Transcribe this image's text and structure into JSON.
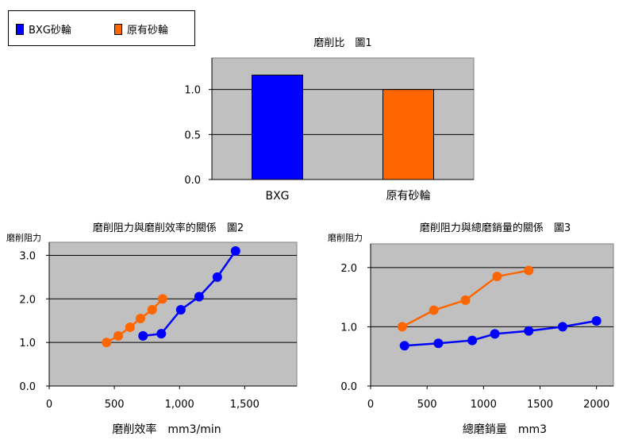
{
  "legend": {
    "items": [
      {
        "label": "BXG砂輪",
        "color": "#0000ff"
      },
      {
        "label": "原有砂輪",
        "color": "#ff6600"
      }
    ]
  },
  "chart_data": [
    {
      "type": "bar",
      "title": "磨削比　圖1",
      "categories": [
        "BXG",
        "原有砂輪"
      ],
      "values": [
        1.16,
        1.0
      ],
      "colors": [
        "#0000ff",
        "#ff6600"
      ],
      "ylim": [
        0,
        1.35
      ],
      "yticks": [
        "0.0",
        "0.5",
        "1.0"
      ],
      "ytick_values": [
        0,
        0.5,
        1.0
      ],
      "grid": true
    },
    {
      "type": "line",
      "title": "磨削阻力與磨削效率的關係　圖2",
      "ylabel": "磨削阻力",
      "xlabel": "磨削效率　mm3/min",
      "xlim": [
        0,
        1900
      ],
      "ylim": [
        0,
        3.3
      ],
      "xticks": [
        "0",
        "500",
        "1,000",
        "1,500"
      ],
      "xtick_values": [
        0,
        500,
        1000,
        1500
      ],
      "yticks": [
        "0.0",
        "1.0",
        "2.0",
        "3.0"
      ],
      "ytick_values": [
        0,
        1,
        2,
        3
      ],
      "grid": true,
      "series": [
        {
          "color": "#0000ff",
          "x": [
            720,
            860,
            1010,
            1150,
            1290,
            1430
          ],
          "y": [
            1.15,
            1.2,
            1.75,
            2.05,
            2.5,
            3.1
          ]
        },
        {
          "color": "#ff6600",
          "x": [
            440,
            530,
            620,
            700,
            790,
            870
          ],
          "y": [
            1.0,
            1.15,
            1.35,
            1.55,
            1.75,
            2.0
          ]
        }
      ]
    },
    {
      "type": "line",
      "title": "磨削阻力與總磨銷量的關係　圖3",
      "ylabel": "磨削阻力",
      "xlabel": "總磨銷量　mm3",
      "xlim": [
        0,
        2150
      ],
      "ylim": [
        0,
        2.4
      ],
      "xticks": [
        "0",
        "500",
        "1000",
        "1500",
        "2000"
      ],
      "xtick_values": [
        0,
        500,
        1000,
        1500,
        2000
      ],
      "yticks": [
        "0.0",
        "1.0",
        "2.0"
      ],
      "ytick_values": [
        0,
        1,
        2
      ],
      "grid": true,
      "series": [
        {
          "color": "#0000ff",
          "x": [
            300,
            600,
            900,
            1100,
            1400,
            1700,
            2000
          ],
          "y": [
            0.68,
            0.72,
            0.77,
            0.88,
            0.93,
            1.0,
            1.1
          ]
        },
        {
          "color": "#ff6600",
          "x": [
            280,
            560,
            840,
            1120,
            1400
          ],
          "y": [
            1.0,
            1.28,
            1.45,
            1.85,
            1.95
          ]
        }
      ]
    }
  ]
}
